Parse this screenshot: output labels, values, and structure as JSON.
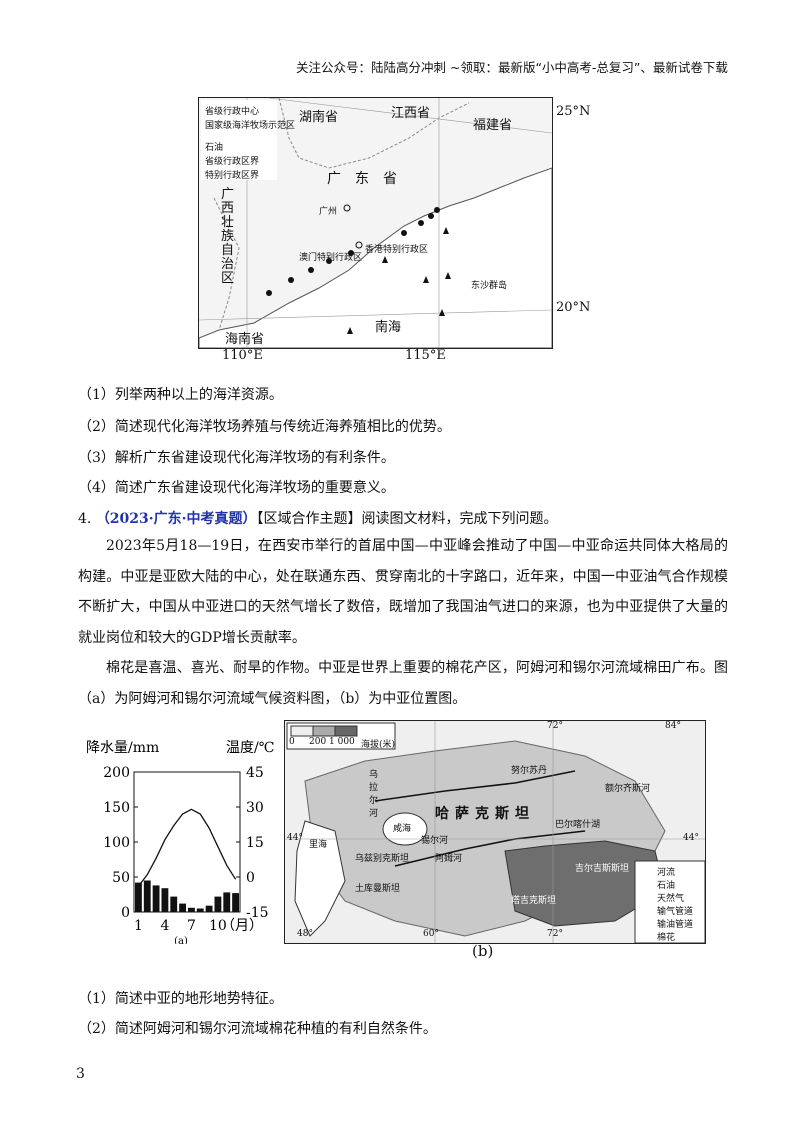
{
  "header": {
    "text": "关注公众号：陆陆高分冲刺 ~领取：最新版“小中高考-总复习”、最新试卷下载"
  },
  "map1": {
    "legend": [
      "省级行政中心",
      "国家级海洋牧场示范区",
      "石油",
      "省级行政区界",
      "特别行政区界"
    ],
    "provinces": [
      "湖南省",
      "江西省",
      "福建省",
      "广东省",
      "广西壮族自治区",
      "海南省"
    ],
    "places": [
      "广州",
      "香港特别行政区",
      "澳门特别行政区",
      "东沙群岛"
    ],
    "sea": "南海",
    "lat_labels": [
      "25°N",
      "20°N"
    ],
    "lon_labels": [
      "110°E",
      "115°E"
    ]
  },
  "questions_part1": [
    "（1）列举两种以上的海洋资源。",
    "（2）简述现代化海洋牧场养殖与传统近海养殖相比的优势。",
    "（3）解析广东省建设现代化海洋牧场的有利条件。",
    "（4）简述广东省建设现代化海洋牧场的重要意义。"
  ],
  "q4": {
    "number": "4.",
    "source": "（2023·广东·中考真题）",
    "title": "【区域合作主题】阅读图文材料，完成下列问题。"
  },
  "paragraphs": [
    "2023年5月18—19日，在西安市举行的首届中国—中亚峰会推动了中国—中亚命运共同体大格局的构建。中亚是亚欧大陆的中心，处在联通东西、贯穿南北的十字路口，近年来，中国一中亚油气合作规模不断扩大，中国从中亚进口的天然气增长了数倍，既增加了我国油气进口的来源，也为中亚提供了大量的就业岗位和较大的GDP增长贡献率。",
    "棉花是喜温、喜光、耐旱的作物。中亚是世界上重要的棉花产区，阿姆河和锡尔河流域棉田广布。图（a）为阿姆河和锡尔河流域气候资料图，（b）为中亚位置图。"
  ],
  "chart_data": {
    "type": "bar",
    "title": "",
    "xlabel": "（月）",
    "ylabel": "降水量/mm",
    "y2label": "温度/℃",
    "categories": [
      "1",
      "2",
      "3",
      "4",
      "5",
      "6",
      "7",
      "8",
      "9",
      "10",
      "11",
      "12"
    ],
    "x_ticks": [
      "1",
      "4",
      "7",
      "10"
    ],
    "y_ticks": [
      "0",
      "50",
      "100",
      "150",
      "200"
    ],
    "y2_ticks": [
      "-15",
      "0",
      "15",
      "30",
      "45"
    ],
    "ylim": [
      0,
      200
    ],
    "y2lim": [
      -15,
      45
    ],
    "series": [
      {
        "values": [
          42,
          45,
          38,
          34,
          22,
          12,
          6,
          5,
          9,
          22,
          28,
          27
        ]
      },
      {
        "values": [
          -4,
          1,
          8,
          16,
          22,
          27,
          29,
          27,
          21,
          13,
          5,
          -1
        ]
      }
    ],
    "caption": "(a)"
  },
  "map2": {
    "elev_legend": [
      "0",
      "200",
      "1 000",
      "海拔(米)"
    ],
    "legend": [
      "河流",
      "石油",
      "天然气",
      "输气管道",
      "输油管道",
      "棉花"
    ],
    "countries": [
      "哈萨克斯坦",
      "乌兹别克斯坦",
      "吉尔吉斯斯坦",
      "土库曼斯坦",
      "塔吉克斯坦"
    ],
    "features": [
      "乌拉尔河",
      "咸海",
      "锡尔河",
      "阿姆河",
      "里海",
      "额尔齐斯河",
      "巴尔喀什湖",
      "努尔苏丹"
    ],
    "coords": [
      "72°",
      "84°",
      "44°",
      "44°",
      "48°",
      "60°",
      "72°"
    ],
    "caption": "(b)"
  },
  "questions_part2": [
    "（1）简述中亚的地形地势特征。",
    "（2）简述阿姆河和锡尔河流域棉花种植的有利自然条件。"
  ],
  "page_number": "3"
}
